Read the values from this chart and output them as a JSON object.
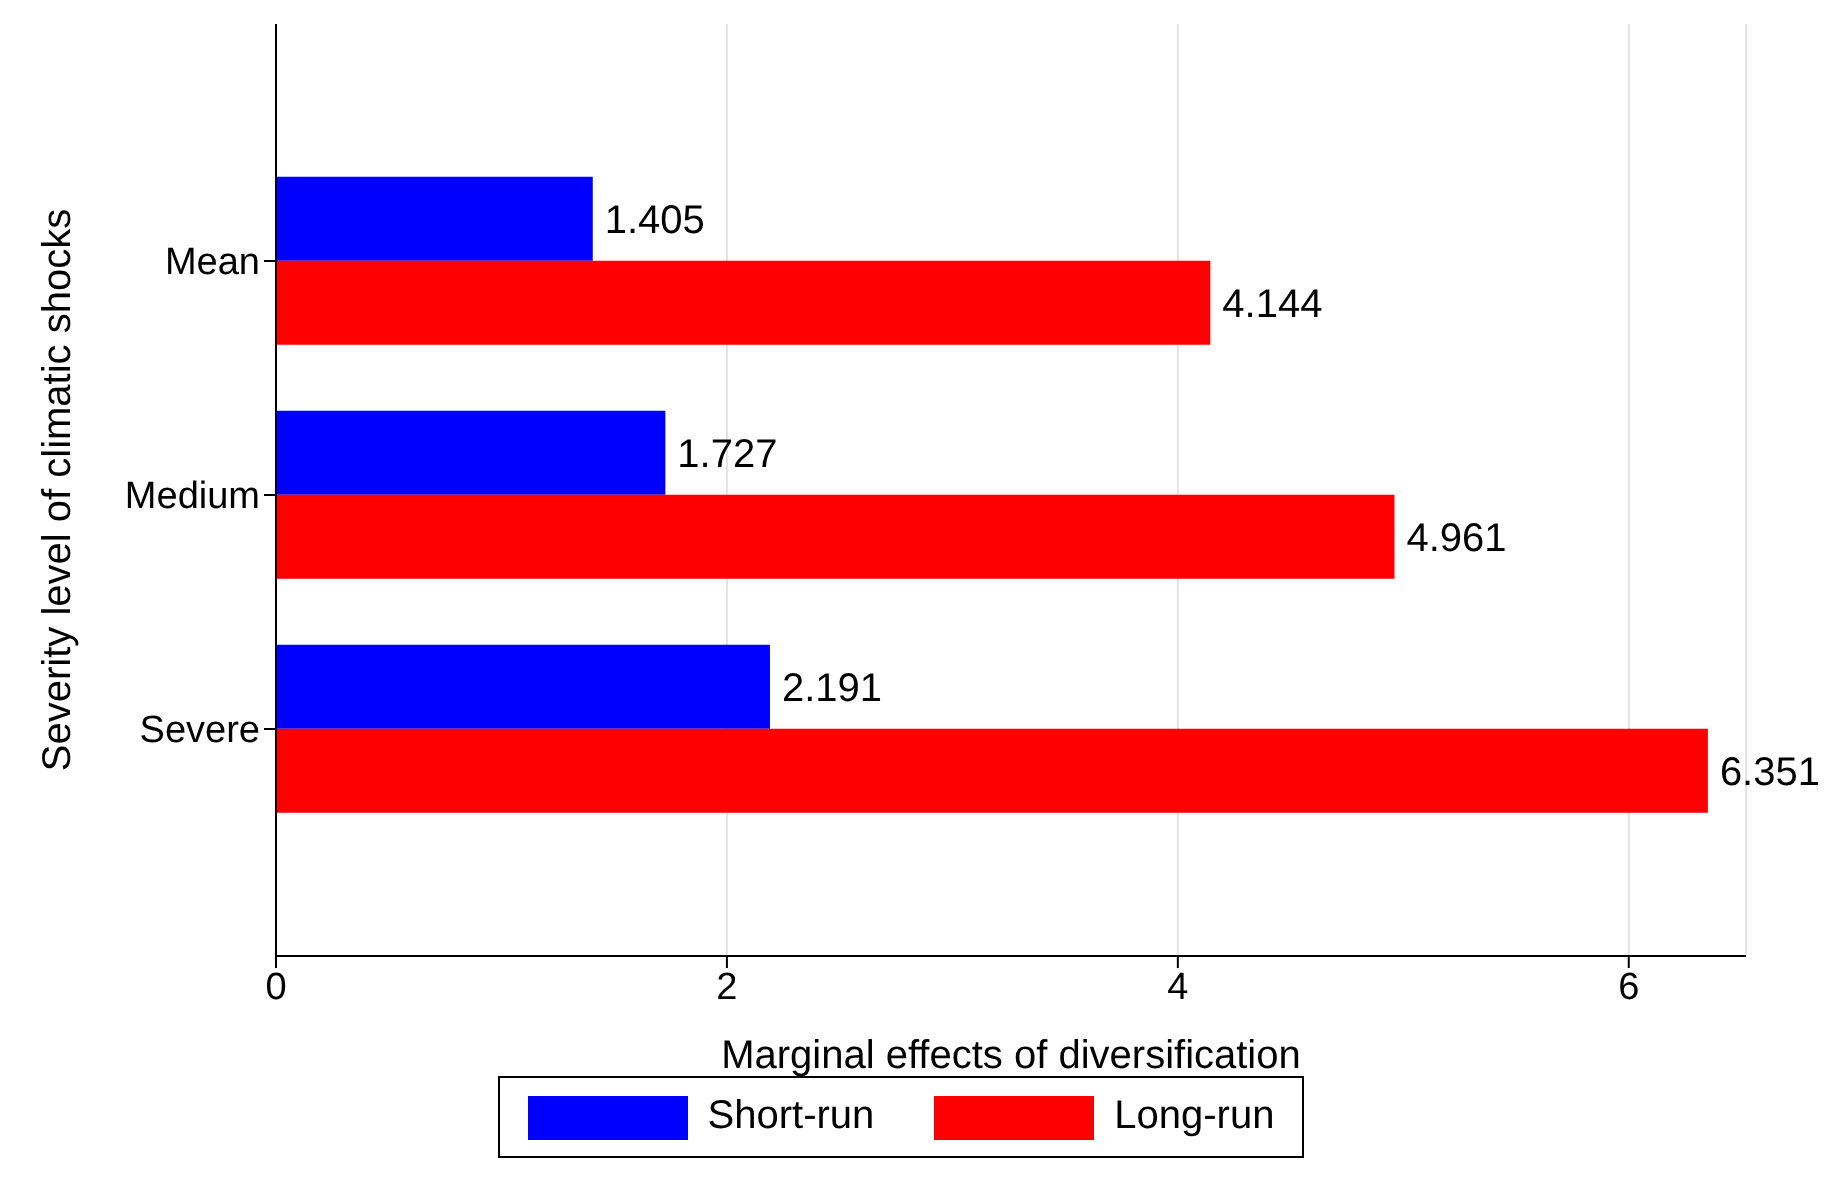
{
  "chart_data": {
    "type": "bar",
    "orientation": "horizontal",
    "xlabel": "Marginal effects of diversification",
    "ylabel": "Severity level of climatic shocks",
    "categories": [
      "Mean",
      "Medium",
      "Severe"
    ],
    "series": [
      {
        "name": "Short-run",
        "color": "#0000ff",
        "values": [
          1.405,
          1.727,
          2.191
        ]
      },
      {
        "name": "Long-run",
        "color": "#ff0000",
        "values": [
          4.144,
          4.961,
          6.351
        ]
      }
    ],
    "xlim": [
      0,
      6.52
    ],
    "xticks": [
      0,
      2,
      4,
      6
    ],
    "grid": "x",
    "legend": "bottom",
    "data_labels": true
  }
}
